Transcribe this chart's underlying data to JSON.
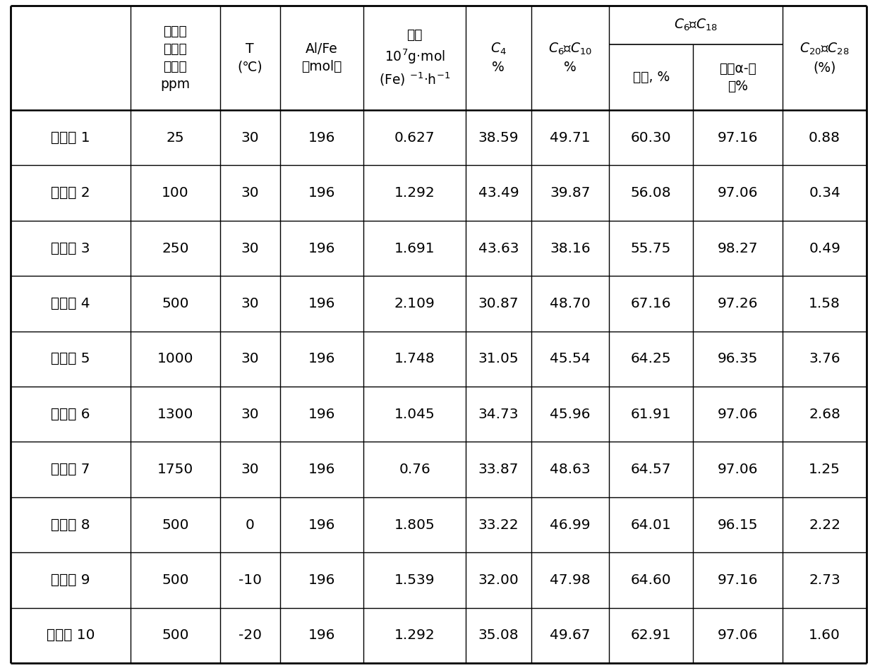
{
  "rows": [
    [
      "实施例 1",
      "25",
      "30",
      "196",
      "0.627",
      "38.59",
      "49.71",
      "60.30",
      "97.16",
      "0.88"
    ],
    [
      "实施例 2",
      "100",
      "30",
      "196",
      "1.292",
      "43.49",
      "39.87",
      "56.08",
      "97.06",
      "0.34"
    ],
    [
      "实施例 3",
      "250",
      "30",
      "196",
      "1.691",
      "43.63",
      "38.16",
      "55.75",
      "98.27",
      "0.49"
    ],
    [
      "实施例 4",
      "500",
      "30",
      "196",
      "2.109",
      "30.87",
      "48.70",
      "67.16",
      "97.26",
      "1.58"
    ],
    [
      "实施例 5",
      "1000",
      "30",
      "196",
      "1.748",
      "31.05",
      "45.54",
      "64.25",
      "96.35",
      "3.76"
    ],
    [
      "实施例 6",
      "1300",
      "30",
      "196",
      "1.045",
      "34.73",
      "45.96",
      "61.91",
      "97.06",
      "2.68"
    ],
    [
      "实施例 7",
      "1750",
      "30",
      "196",
      "0.76",
      "33.87",
      "48.63",
      "64.57",
      "97.06",
      "1.25"
    ],
    [
      "实施例 8",
      "500",
      "0",
      "196",
      "1.805",
      "33.22",
      "46.99",
      "64.01",
      "96.15",
      "2.22"
    ],
    [
      "实施例 9",
      "500",
      "-10",
      "196",
      "1.539",
      "32.00",
      "47.98",
      "64.60",
      "97.16",
      "2.73"
    ],
    [
      "实施例 10",
      "500",
      "-20",
      "196",
      "1.292",
      "35.08",
      "49.67",
      "62.91",
      "97.06",
      "1.60"
    ]
  ],
  "bg_color": "#ffffff",
  "line_color": "#000000",
  "text_color": "#000000"
}
